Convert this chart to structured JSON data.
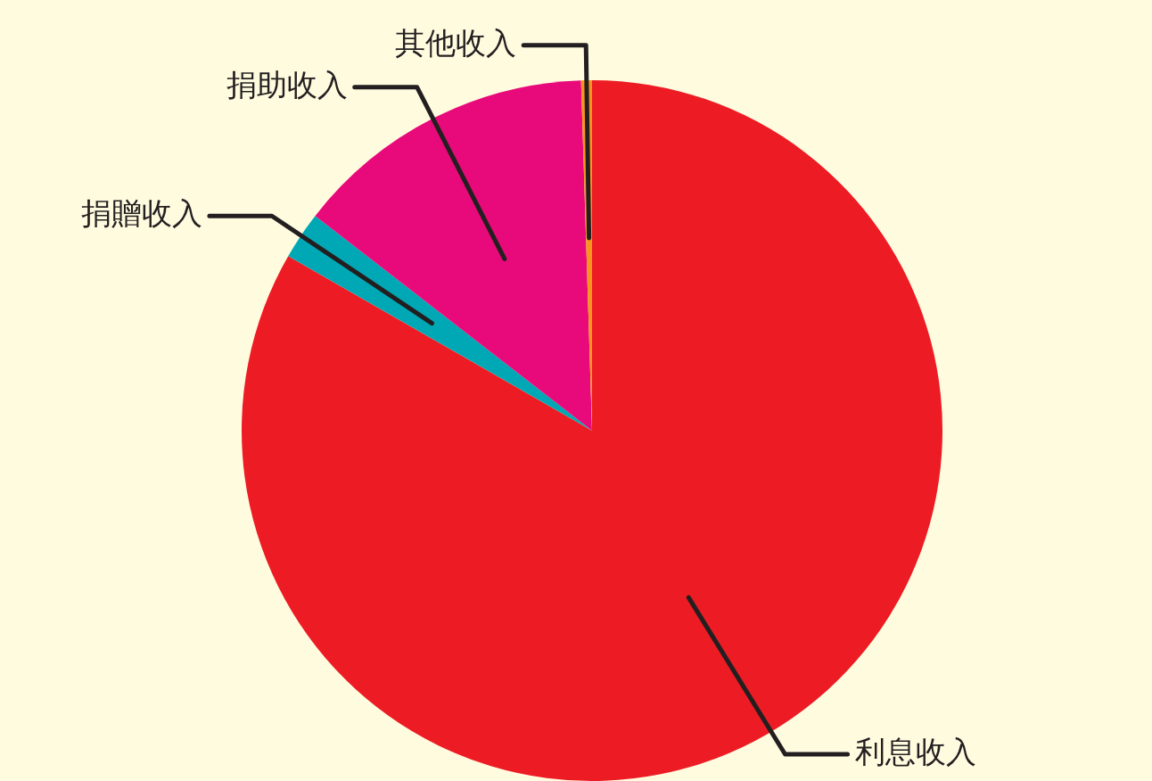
{
  "chart_data": {
    "type": "pie",
    "categories": [
      "利息收入",
      "捐贈收入",
      "捐助收入",
      "其他收入"
    ],
    "values": [
      83.3,
      2.2,
      14.0,
      0.5
    ],
    "colors": [
      "#ed1c24",
      "#00a8b5",
      "#e8097a",
      "#f7941d"
    ],
    "legend": false
  }
}
